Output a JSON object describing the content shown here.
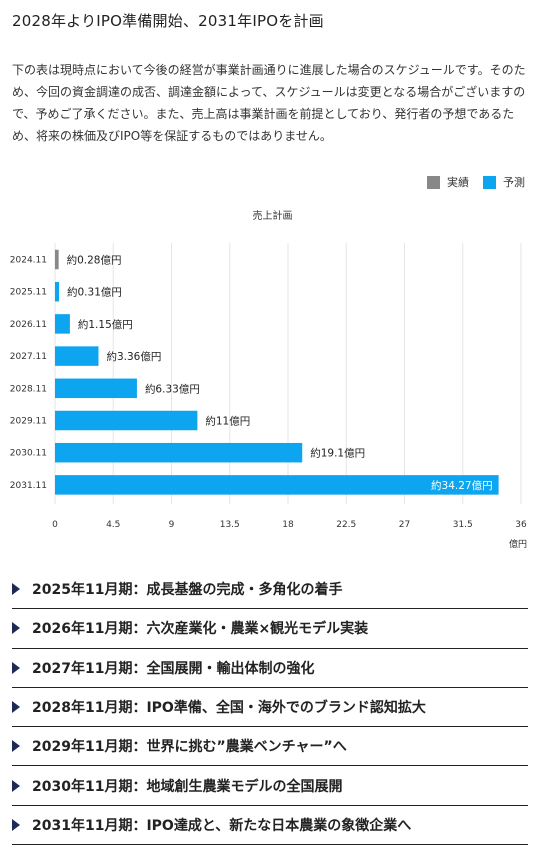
{
  "page": {
    "title": "2028年よりIPO準備開始、2031年IPOを計画",
    "intro": "下の表は現時点において今後の経営が事業計画通りに進展した場合のスケジュールです。そのため、今回の資金調達の成否、調達金額によって、スケジュールは変更となる場合がございますので、予めご了承ください。また、売上高は事業計画を前提としており、発行者の予想であるため、将来の株価及びIPO等を保証するものではありません。"
  },
  "legend": {
    "actual": "実績",
    "forecast": "予測"
  },
  "colors": {
    "actual": "#888888",
    "forecast": "#0ea5f0",
    "grid": "#e6e6e6",
    "accordion_arrow": "#1e2a55"
  },
  "chart_data": {
    "type": "bar",
    "orientation": "horizontal",
    "title": "売上計画",
    "categories": [
      "2024.11",
      "2025.11",
      "2026.11",
      "2027.11",
      "2028.11",
      "2029.11",
      "2030.11",
      "2031.11"
    ],
    "values": [
      0.28,
      0.31,
      1.15,
      3.36,
      6.33,
      11,
      19.1,
      34.27
    ],
    "status": [
      "実績",
      "予測",
      "予測",
      "予測",
      "予測",
      "予測",
      "予測",
      "予測"
    ],
    "data_labels": [
      "約0.28億円",
      "約0.31億円",
      "約1.15億円",
      "約3.36億円",
      "約6.33億円",
      "約11億円",
      "約19.1億円",
      "約34.27億円"
    ],
    "xticks": [
      "0",
      "4.5",
      "9",
      "13.5",
      "18",
      "22.5",
      "27",
      "31.5",
      "36"
    ],
    "xlim": [
      0,
      36
    ],
    "xlabel": "億円",
    "ylabel": "",
    "grid": true,
    "legend_position": "top-right"
  },
  "accordion": [
    "2025年11月期：成長基盤の完成・多角化の着手",
    "2026年11月期：六次産業化・農業×観光モデル実装",
    "2027年11月期：全国展開・輸出体制の強化",
    "2028年11月期：IPO準備、全国・海外でのブランド認知拡大",
    "2029年11月期：世界に挑む”農業ベンチャー”へ",
    "2030年11月期：地域創生農業モデルの全国展開",
    "2031年11月期：IPO達成と、新たな日本農業の象徴企業へ"
  ]
}
